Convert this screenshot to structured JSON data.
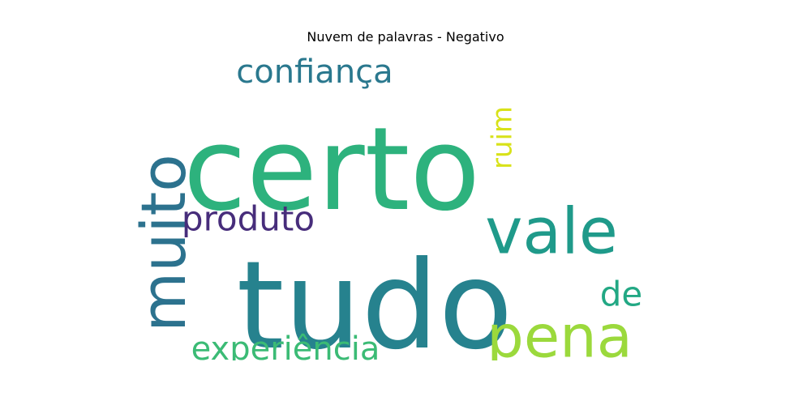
{
  "chart_data": {
    "type": "wordcloud",
    "title": "Nuvem de palavras - Negativo",
    "words": [
      {
        "text": "certo",
        "color": "#2db27d",
        "rotated": false
      },
      {
        "text": "tudo",
        "color": "#26828e",
        "rotated": false
      },
      {
        "text": "vale",
        "color": "#1f9a8a",
        "rotated": false
      },
      {
        "text": "pena",
        "color": "#9bd93c",
        "rotated": false
      },
      {
        "text": "muito",
        "color": "#2c728e",
        "rotated": true
      },
      {
        "text": "confiança",
        "color": "#2a788e",
        "rotated": false
      },
      {
        "text": "produto",
        "color": "#472d7b",
        "rotated": false
      },
      {
        "text": "ruim",
        "color": "#d8e219",
        "rotated": true
      },
      {
        "text": "de",
        "color": "#22a884",
        "rotated": false
      },
      {
        "text": "experiência",
        "color": "#3bbb75",
        "rotated": false
      }
    ]
  }
}
